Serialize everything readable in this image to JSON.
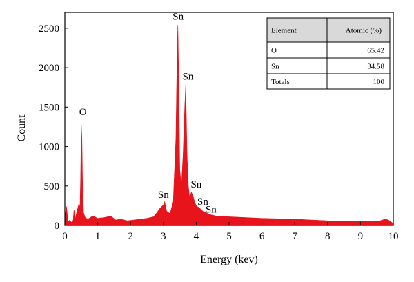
{
  "chart_data": {
    "type": "area",
    "title": "",
    "xlabel": "Energy (kev)",
    "ylabel": "Count",
    "xlim": [
      0,
      10
    ],
    "ylim": [
      0,
      2700
    ],
    "xticks": [
      "0",
      "1",
      "2",
      "3",
      "4",
      "5",
      "6",
      "7",
      "8",
      "9",
      "10"
    ],
    "yticks": [
      "0",
      "500",
      "1000",
      "1500",
      "2000",
      "2500"
    ],
    "series_color": "#e8141b",
    "spectrum": [
      [
        0.0,
        120
      ],
      [
        0.05,
        240
      ],
      [
        0.1,
        40
      ],
      [
        0.15,
        70
      ],
      [
        0.2,
        40
      ],
      [
        0.25,
        60
      ],
      [
        0.28,
        200
      ],
      [
        0.31,
        70
      ],
      [
        0.35,
        150
      ],
      [
        0.4,
        230
      ],
      [
        0.43,
        280
      ],
      [
        0.46,
        220
      ],
      [
        0.48,
        600
      ],
      [
        0.5,
        1280
      ],
      [
        0.52,
        1100
      ],
      [
        0.54,
        520
      ],
      [
        0.57,
        160
      ],
      [
        0.62,
        100
      ],
      [
        0.7,
        80
      ],
      [
        0.85,
        120
      ],
      [
        1.0,
        90
      ],
      [
        1.2,
        100
      ],
      [
        1.4,
        120
      ],
      [
        1.55,
        70
      ],
      [
        1.7,
        80
      ],
      [
        1.9,
        60
      ],
      [
        2.1,
        70
      ],
      [
        2.3,
        80
      ],
      [
        2.5,
        90
      ],
      [
        2.7,
        110
      ],
      [
        2.8,
        160
      ],
      [
        2.9,
        220
      ],
      [
        3.0,
        260
      ],
      [
        3.04,
        300
      ],
      [
        3.1,
        180
      ],
      [
        3.2,
        150
      ],
      [
        3.3,
        300
      ],
      [
        3.38,
        1100
      ],
      [
        3.42,
        2200
      ],
      [
        3.44,
        2540
      ],
      [
        3.47,
        1800
      ],
      [
        3.5,
        700
      ],
      [
        3.55,
        500
      ],
      [
        3.6,
        900
      ],
      [
        3.65,
        1500
      ],
      [
        3.68,
        1780
      ],
      [
        3.72,
        900
      ],
      [
        3.76,
        500
      ],
      [
        3.8,
        350
      ],
      [
        3.85,
        420
      ],
      [
        3.9,
        380
      ],
      [
        3.95,
        300
      ],
      [
        4.0,
        250
      ],
      [
        4.1,
        220
      ],
      [
        4.2,
        180
      ],
      [
        4.3,
        160
      ],
      [
        4.4,
        140
      ],
      [
        4.6,
        120
      ],
      [
        5.0,
        110
      ],
      [
        5.5,
        100
      ],
      [
        6.0,
        90
      ],
      [
        6.5,
        85
      ],
      [
        7.0,
        80
      ],
      [
        7.5,
        70
      ],
      [
        8.0,
        60
      ],
      [
        8.5,
        55
      ],
      [
        9.0,
        50
      ],
      [
        9.3,
        50
      ],
      [
        9.6,
        60
      ],
      [
        9.75,
        80
      ],
      [
        9.85,
        70
      ],
      [
        9.95,
        40
      ],
      [
        10.0,
        20
      ]
    ],
    "annotations": [
      {
        "label": "O",
        "x": 0.55,
        "y": 1400
      },
      {
        "label": "Sn",
        "x": 3.45,
        "y": 2610
      },
      {
        "label": "Sn",
        "x": 3.75,
        "y": 1850
      },
      {
        "label": "Sn",
        "x": 3.0,
        "y": 350
      },
      {
        "label": "Sn",
        "x": 4.0,
        "y": 480
      },
      {
        "label": "Sn",
        "x": 4.2,
        "y": 260
      },
      {
        "label": "Sn",
        "x": 4.45,
        "y": 160
      }
    ],
    "table": {
      "headers": [
        "Element",
        "Atomic (%)"
      ],
      "rows": [
        [
          "O",
          "65.42"
        ],
        [
          "Sn",
          "34.58"
        ],
        [
          "Totals",
          "100"
        ]
      ]
    }
  }
}
